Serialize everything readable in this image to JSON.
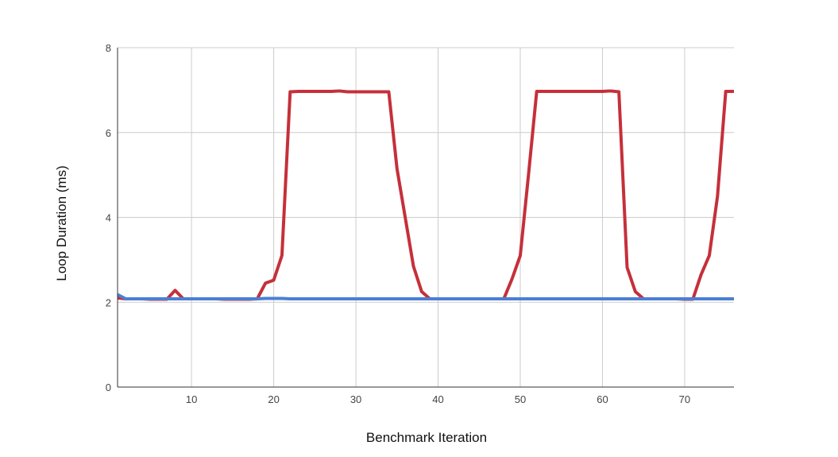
{
  "chart_data": {
    "type": "line",
    "title": "",
    "xlabel": "Benchmark Iteration",
    "ylabel": "Loop Duration (ms)",
    "xlim": [
      1,
      76
    ],
    "ylim": [
      0,
      8
    ],
    "x_ticks": [
      10,
      20,
      30,
      40,
      50,
      60,
      70
    ],
    "y_ticks": [
      0,
      2,
      4,
      6,
      8
    ],
    "x_tick_labels": [
      "10",
      "20",
      "30",
      "40",
      "50",
      "60",
      "70"
    ],
    "y_tick_labels": [
      "0",
      "2",
      "4",
      "6",
      "8"
    ],
    "grid": true,
    "legend": "none",
    "x": [
      1,
      2,
      3,
      4,
      5,
      6,
      7,
      8,
      9,
      10,
      11,
      12,
      13,
      14,
      15,
      16,
      17,
      18,
      19,
      20,
      21,
      22,
      23,
      24,
      25,
      26,
      27,
      28,
      29,
      30,
      31,
      32,
      33,
      34,
      35,
      36,
      37,
      38,
      39,
      40,
      41,
      42,
      43,
      44,
      45,
      46,
      47,
      48,
      49,
      50,
      51,
      52,
      53,
      54,
      55,
      56,
      57,
      58,
      59,
      60,
      61,
      62,
      63,
      64,
      65,
      66,
      67,
      68,
      69,
      70,
      71,
      72,
      73,
      74,
      75,
      76
    ],
    "series": [
      {
        "color": "#c5303a",
        "values": [
          2.1,
          2.08,
          2.08,
          2.08,
          2.07,
          2.07,
          2.07,
          2.28,
          2.08,
          2.08,
          2.08,
          2.08,
          2.08,
          2.07,
          2.07,
          2.07,
          2.07,
          2.08,
          2.45,
          2.52,
          3.1,
          6.96,
          6.97,
          6.97,
          6.97,
          6.97,
          6.97,
          6.98,
          6.96,
          6.96,
          6.96,
          6.96,
          6.96,
          6.96,
          5.15,
          4.0,
          2.85,
          2.25,
          2.08,
          2.08,
          2.08,
          2.08,
          2.08,
          2.08,
          2.08,
          2.08,
          2.08,
          2.08,
          2.55,
          3.1,
          5.0,
          6.97,
          6.97,
          6.97,
          6.97,
          6.97,
          6.97,
          6.97,
          6.97,
          6.97,
          6.98,
          6.96,
          2.82,
          2.25,
          2.08,
          2.08,
          2.08,
          2.08,
          2.08,
          2.07,
          2.07,
          2.65,
          3.1,
          4.5,
          6.97,
          6.97
        ]
      },
      {
        "color": "#4b7fd4",
        "values": [
          2.18,
          2.08,
          2.08,
          2.08,
          2.08,
          2.08,
          2.08,
          2.08,
          2.08,
          2.08,
          2.08,
          2.08,
          2.08,
          2.08,
          2.08,
          2.08,
          2.08,
          2.08,
          2.09,
          2.09,
          2.09,
          2.08,
          2.08,
          2.08,
          2.08,
          2.08,
          2.08,
          2.08,
          2.08,
          2.08,
          2.08,
          2.08,
          2.08,
          2.08,
          2.08,
          2.08,
          2.08,
          2.08,
          2.08,
          2.08,
          2.08,
          2.08,
          2.08,
          2.08,
          2.08,
          2.08,
          2.08,
          2.08,
          2.08,
          2.08,
          2.08,
          2.08,
          2.08,
          2.08,
          2.08,
          2.08,
          2.08,
          2.08,
          2.08,
          2.08,
          2.08,
          2.08,
          2.08,
          2.08,
          2.08,
          2.08,
          2.08,
          2.08,
          2.08,
          2.08,
          2.08,
          2.08,
          2.08,
          2.08,
          2.08,
          2.08
        ]
      }
    ]
  }
}
